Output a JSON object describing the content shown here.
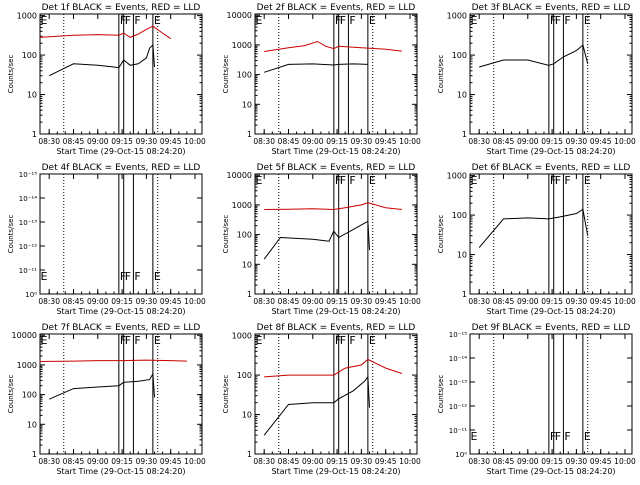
{
  "chart_data": [
    {
      "type": "line",
      "log_y": true,
      "title": "Det 1f BLACK = Events, RED = LLD",
      "ylabel": "Counts/sec",
      "xlabel": "Start Time (29-Oct-15 08:24:20)",
      "x_ticks": [
        "08:30",
        "08:45",
        "09:00",
        "09:15",
        "09:30",
        "09:45",
        "10:00"
      ],
      "y_ticks": [
        "1",
        "10",
        "100",
        "1000"
      ],
      "ylim": [
        1,
        1100
      ],
      "markers": [
        {
          "label": "E",
          "time": "08:24"
        },
        {
          "label": "F",
          "time": "09:13"
        },
        {
          "label": "F",
          "time": "09:16"
        },
        {
          "label": "F",
          "time": "09:22"
        },
        {
          "label": "E",
          "time": "09:34"
        }
      ],
      "dotted_lines": [
        "08:39",
        "09:37"
      ],
      "series": [
        {
          "color": "#000000",
          "x": [
            "08:30",
            "08:45",
            "09:00",
            "09:10",
            "09:13",
            "09:16",
            "09:20",
            "09:25",
            "09:30",
            "09:32",
            "09:34",
            "09:35"
          ],
          "values": [
            30,
            60,
            55,
            50,
            48,
            75,
            55,
            60,
            85,
            150,
            180,
            50
          ]
        },
        {
          "color": "#cc0000",
          "x": [
            "08:24",
            "08:45",
            "09:00",
            "09:13",
            "09:16",
            "09:20",
            "09:25",
            "09:30",
            "09:34",
            "09:40",
            "09:45"
          ],
          "values": [
            280,
            320,
            330,
            320,
            360,
            280,
            340,
            450,
            540,
            360,
            260
          ]
        }
      ]
    },
    {
      "type": "line",
      "log_y": true,
      "title": "Det 2f BLACK = Events, RED = LLD",
      "ylabel": "Counts/sec",
      "xlabel": "Start Time (29-Oct-15 08:24:20)",
      "x_ticks": [
        "08:30",
        "08:45",
        "09:00",
        "09:15",
        "09:30",
        "09:45",
        "10:00"
      ],
      "y_ticks": [
        "1",
        "10",
        "100",
        "1000",
        "10000"
      ],
      "ylim": [
        1,
        11000
      ],
      "markers": [
        {
          "label": "E",
          "time": "08:24"
        },
        {
          "label": "F",
          "time": "09:13"
        },
        {
          "label": "F",
          "time": "09:16"
        },
        {
          "label": "F",
          "time": "09:22"
        },
        {
          "label": "E",
          "time": "09:34"
        }
      ],
      "dotted_lines": [
        "08:39",
        "09:37"
      ],
      "series": [
        {
          "color": "#000000",
          "x": [
            "08:30",
            "08:45",
            "09:00",
            "09:13",
            "09:16",
            "09:25",
            "09:34"
          ],
          "values": [
            120,
            220,
            230,
            210,
            220,
            230,
            220
          ]
        },
        {
          "color": "#cc0000",
          "x": [
            "08:30",
            "08:45",
            "08:55",
            "09:03",
            "09:08",
            "09:13",
            "09:16",
            "09:30",
            "09:45",
            "09:55"
          ],
          "values": [
            600,
            800,
            950,
            1300,
            900,
            750,
            900,
            800,
            720,
            620
          ]
        }
      ]
    },
    {
      "type": "line",
      "log_y": true,
      "title": "Det 3f BLACK = Events, RED = LLD",
      "ylabel": "Counts/sec",
      "xlabel": "Start Time (29-Oct-15 08:24:20)",
      "x_ticks": [
        "08:30",
        "08:45",
        "09:00",
        "09:15",
        "09:30",
        "09:45",
        "10:00"
      ],
      "y_ticks": [
        "1",
        "10",
        "100",
        "1000"
      ],
      "ylim": [
        1,
        1100
      ],
      "markers": [
        {
          "label": "E",
          "time": "08:24"
        },
        {
          "label": "F",
          "time": "09:13"
        },
        {
          "label": "F",
          "time": "09:16"
        },
        {
          "label": "F",
          "time": "09:22"
        },
        {
          "label": "E",
          "time": "09:34"
        }
      ],
      "dotted_lines": [
        "08:39",
        "09:37"
      ],
      "series": [
        {
          "color": "#000000",
          "x": [
            "08:30",
            "08:45",
            "09:00",
            "09:13",
            "09:16",
            "09:22",
            "09:30",
            "09:34",
            "09:37"
          ],
          "values": [
            50,
            75,
            75,
            55,
            60,
            90,
            130,
            180,
            60
          ]
        }
      ]
    },
    {
      "type": "line",
      "log_y": true,
      "title": "Det 4f BLACK = Events, RED = LLD",
      "ylabel": "Counts/sec",
      "xlabel": "Start Time (29-Oct-15 08:24:20)",
      "x_ticks": [
        "08:30",
        "08:45",
        "09:00",
        "09:15",
        "09:30",
        "09:45",
        "10:00"
      ],
      "y_ticks": [
        "10⁰",
        "10⁻¹¹",
        "10⁻¹²",
        "10⁻¹³",
        "10⁻¹⁴",
        "10⁻¹⁵"
      ],
      "markers": [
        {
          "label": "E",
          "time": "08:24"
        },
        {
          "label": "F",
          "time": "09:13"
        },
        {
          "label": "F",
          "time": "09:16"
        },
        {
          "label": "F",
          "time": "09:22"
        },
        {
          "label": "E",
          "time": "09:34"
        }
      ],
      "dotted_lines": [
        "08:39",
        "09:37"
      ],
      "series": []
    },
    {
      "type": "line",
      "log_y": true,
      "title": "Det 5f BLACK = Events, RED = LLD",
      "ylabel": "Counts/sec",
      "xlabel": "Start Time (29-Oct-15 08:24:20)",
      "x_ticks": [
        "08:30",
        "08:45",
        "09:00",
        "09:15",
        "09:30",
        "09:45",
        "10:00"
      ],
      "y_ticks": [
        "1",
        "10",
        "100",
        "1000",
        "10000"
      ],
      "ylim": [
        1,
        11000
      ],
      "markers": [
        {
          "label": "E",
          "time": "08:24"
        },
        {
          "label": "F",
          "time": "09:13"
        },
        {
          "label": "F",
          "time": "09:16"
        },
        {
          "label": "F",
          "time": "09:22"
        },
        {
          "label": "E",
          "time": "09:34"
        }
      ],
      "dotted_lines": [
        "08:39",
        "09:37"
      ],
      "series": [
        {
          "color": "#000000",
          "x": [
            "08:30",
            "08:40",
            "09:00",
            "09:10",
            "09:13",
            "09:16",
            "09:25",
            "09:34",
            "09:35"
          ],
          "values": [
            15,
            80,
            70,
            60,
            130,
            80,
            150,
            280,
            30
          ]
        },
        {
          "color": "#cc0000",
          "x": [
            "08:30",
            "08:45",
            "09:00",
            "09:13",
            "09:20",
            "09:30",
            "09:34",
            "09:45",
            "09:55"
          ],
          "values": [
            700,
            720,
            740,
            700,
            800,
            1000,
            1200,
            800,
            700
          ]
        }
      ]
    },
    {
      "type": "line",
      "log_y": true,
      "title": "Det 6f BLACK = Events, RED = LLD",
      "ylabel": "Counts/sec",
      "xlabel": "Start Time (29-Oct-15 08:24:20)",
      "x_ticks": [
        "08:30",
        "08:45",
        "09:00",
        "09:15",
        "09:30",
        "09:45",
        "10:00"
      ],
      "y_ticks": [
        "1",
        "10",
        "100",
        "1000"
      ],
      "ylim": [
        1,
        1100
      ],
      "markers": [
        {
          "label": "E",
          "time": "08:24"
        },
        {
          "label": "F",
          "time": "09:13"
        },
        {
          "label": "F",
          "time": "09:16"
        },
        {
          "label": "F",
          "time": "09:22"
        },
        {
          "label": "E",
          "time": "09:34"
        }
      ],
      "dotted_lines": [
        "08:39",
        "09:37"
      ],
      "series": [
        {
          "color": "#000000",
          "x": [
            "08:30",
            "08:45",
            "09:00",
            "09:13",
            "09:20",
            "09:30",
            "09:34",
            "09:37"
          ],
          "values": [
            15,
            80,
            85,
            80,
            90,
            110,
            140,
            30
          ]
        }
      ]
    },
    {
      "type": "line",
      "log_y": true,
      "title": "Det 7f BLACK = Events, RED = LLD",
      "ylabel": "Counts/sec",
      "xlabel": "Start Time (29-Oct-15 08:24:20)",
      "x_ticks": [
        "08:30",
        "08:45",
        "09:00",
        "09:15",
        "09:30",
        "09:45",
        "10:00"
      ],
      "y_ticks": [
        "1",
        "10",
        "100",
        "1000",
        "10000"
      ],
      "ylim": [
        1,
        11000
      ],
      "markers": [
        {
          "label": "E",
          "time": "08:24"
        },
        {
          "label": "F",
          "time": "09:13"
        },
        {
          "label": "F",
          "time": "09:16"
        },
        {
          "label": "F",
          "time": "09:22"
        },
        {
          "label": "E",
          "time": "09:34"
        }
      ],
      "dotted_lines": [
        "08:39",
        "09:37"
      ],
      "series": [
        {
          "color": "#000000",
          "x": [
            "08:30",
            "08:45",
            "09:00",
            "09:13",
            "09:16",
            "09:25",
            "09:32",
            "09:34",
            "09:35"
          ],
          "values": [
            70,
            160,
            180,
            200,
            260,
            280,
            320,
            500,
            80
          ]
        },
        {
          "color": "#cc0000",
          "x": [
            "08:24",
            "08:45",
            "09:00",
            "09:15",
            "09:30",
            "09:45",
            "09:55"
          ],
          "values": [
            1300,
            1350,
            1400,
            1400,
            1450,
            1400,
            1350
          ]
        }
      ]
    },
    {
      "type": "line",
      "log_y": true,
      "title": "Det 8f BLACK = Events, RED = LLD",
      "ylabel": "Counts/sec",
      "xlabel": "Start Time (29-Oct-15 08:24:20)",
      "x_ticks": [
        "08:30",
        "08:45",
        "09:00",
        "09:15",
        "09:30",
        "09:45",
        "10:00"
      ],
      "y_ticks": [
        "1",
        "10",
        "100",
        "1000"
      ],
      "ylim": [
        1,
        1100
      ],
      "markers": [
        {
          "label": "E",
          "time": "08:24"
        },
        {
          "label": "F",
          "time": "09:13"
        },
        {
          "label": "F",
          "time": "09:16"
        },
        {
          "label": "F",
          "time": "09:22"
        },
        {
          "label": "E",
          "time": "09:34"
        }
      ],
      "dotted_lines": [
        "08:39",
        "09:37"
      ],
      "series": [
        {
          "color": "#000000",
          "x": [
            "08:30",
            "08:45",
            "09:00",
            "09:13",
            "09:16",
            "09:25",
            "09:32",
            "09:34",
            "09:35"
          ],
          "values": [
            3,
            18,
            20,
            20,
            25,
            40,
            70,
            90,
            15
          ]
        },
        {
          "color": "#cc0000",
          "x": [
            "08:30",
            "08:45",
            "09:00",
            "09:13",
            "09:20",
            "09:30",
            "09:34",
            "09:45",
            "09:55"
          ],
          "values": [
            90,
            100,
            100,
            100,
            150,
            180,
            250,
            150,
            110
          ]
        }
      ]
    },
    {
      "type": "line",
      "log_y": true,
      "title": "Det 9f BLACK = Events, RED = LLD",
      "ylabel": "Counts/sec",
      "xlabel": "Start Time (29-Oct-15 08:24:20)",
      "x_ticks": [
        "08:30",
        "08:45",
        "09:00",
        "09:15",
        "09:30",
        "09:45",
        "10:00"
      ],
      "y_ticks": [
        "10⁰",
        "10⁻¹¹",
        "10⁻¹²",
        "10⁻¹³",
        "10⁻¹⁴",
        "10⁻¹⁵"
      ],
      "markers": [
        {
          "label": "E",
          "time": "08:24"
        },
        {
          "label": "F",
          "time": "09:13"
        },
        {
          "label": "F",
          "time": "09:16"
        },
        {
          "label": "F",
          "time": "09:22"
        },
        {
          "label": "E",
          "time": "09:34"
        }
      ],
      "dotted_lines": [
        "08:39",
        "09:37"
      ],
      "series": []
    }
  ]
}
